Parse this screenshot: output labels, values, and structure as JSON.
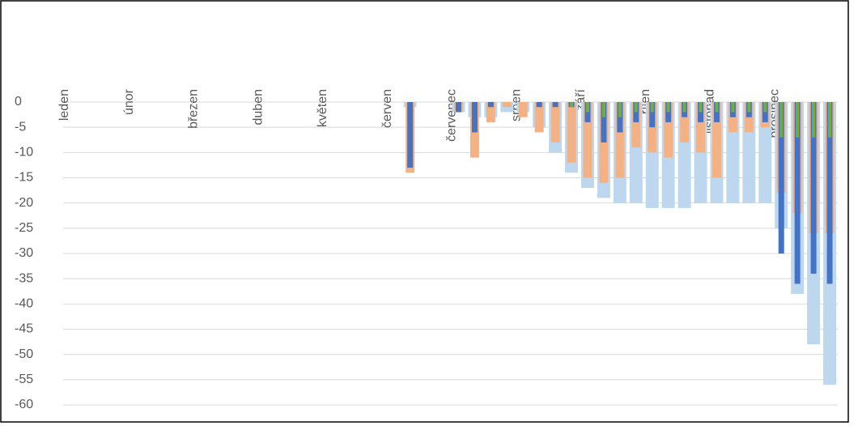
{
  "chart_data": {
    "type": "bar",
    "categories": [
      "leden",
      null,
      null,
      null,
      "únor",
      null,
      null,
      null,
      "březen",
      null,
      null,
      null,
      "duben",
      null,
      null,
      null,
      "květen",
      null,
      null,
      null,
      "červen",
      null,
      null,
      null,
      "červenec",
      null,
      null,
      null,
      "srpen",
      null,
      null,
      null,
      "září",
      null,
      null,
      null,
      "říjen",
      null,
      null,
      null,
      "listopad",
      null,
      null,
      null,
      "prosinec",
      null,
      null,
      null
    ],
    "series": [
      {
        "color": "#bdd7ee",
        "values": [
          0,
          0,
          0,
          0,
          0,
          0,
          0,
          0,
          0,
          0,
          0,
          0,
          0,
          0,
          0,
          0,
          0,
          0,
          0,
          0,
          0,
          -1,
          0,
          0,
          -2,
          -3,
          -3,
          -2,
          -2,
          -5,
          -10,
          -14,
          -17,
          -19,
          -20,
          -20,
          -21,
          -21,
          -21,
          -20,
          -20,
          -20,
          -20,
          -20,
          -25,
          -38,
          -48,
          -56
        ]
      },
      {
        "color": "#f4b183",
        "values": [
          0,
          0,
          0,
          0,
          0,
          0,
          0,
          0,
          0,
          0,
          0,
          0,
          0,
          0,
          0,
          0,
          0,
          0,
          0,
          0,
          0,
          -14,
          0,
          0,
          -2,
          -11,
          -4,
          -1,
          -3,
          -6,
          -8,
          -12,
          -15,
          -16,
          -15,
          -9,
          -10,
          -11,
          -8,
          -10,
          -15,
          -6,
          -6,
          -5,
          -18,
          -22,
          -26,
          -26
        ]
      },
      {
        "color": "#4472c4",
        "values": [
          0,
          0,
          0,
          0,
          0,
          0,
          0,
          0,
          0,
          0,
          0,
          0,
          0,
          0,
          0,
          0,
          0,
          0,
          0,
          0,
          0,
          -13,
          0,
          0,
          -2,
          -6,
          -1,
          0,
          0,
          -1,
          -1,
          -1,
          -4,
          -8,
          -6,
          -4,
          -5,
          -4,
          -3,
          -4,
          -4,
          -3,
          -3,
          -4,
          -30,
          -36,
          -34,
          -36
        ]
      },
      {
        "color": "#70ad47",
        "values": [
          0,
          0,
          0,
          0,
          0,
          0,
          0,
          0,
          0,
          0,
          0,
          0,
          0,
          0,
          0,
          0,
          0,
          0,
          0,
          0,
          0,
          0,
          0,
          0,
          0,
          0,
          0,
          0,
          0,
          0,
          0,
          -1,
          -2,
          -3,
          -3,
          -2,
          -2,
          -2,
          -2,
          -2,
          -2,
          -2,
          -2,
          -2,
          -7,
          -7,
          -7,
          -7
        ]
      }
    ],
    "ylim": [
      -60,
      0
    ],
    "yticks": [
      0,
      -5,
      -10,
      -15,
      -20,
      -25,
      -30,
      -35,
      -40,
      -45,
      -50,
      -55,
      -60
    ],
    "grid": true
  }
}
